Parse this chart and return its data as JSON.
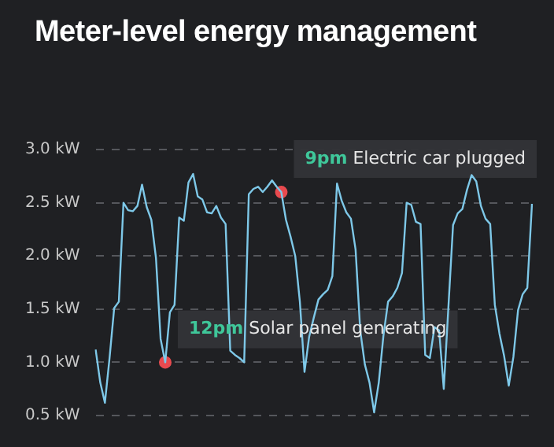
{
  "chart_data": {
    "type": "line",
    "title": "Meter-level energy management",
    "categories": [
      null,
      null,
      null,
      null,
      null,
      null,
      null,
      null,
      null,
      null,
      null,
      null,
      null,
      null,
      null,
      null,
      null,
      null,
      null,
      null,
      null,
      null,
      null,
      null,
      null,
      null,
      null,
      null,
      null,
      null,
      null,
      null,
      null,
      null,
      null,
      null,
      null,
      null,
      null,
      null,
      null,
      null,
      null,
      null,
      null,
      null,
      null,
      null,
      null,
      null,
      null,
      null,
      null,
      null,
      null,
      null,
      null,
      null,
      null,
      null,
      null,
      null,
      null,
      null,
      null,
      null,
      null,
      null,
      null,
      null,
      null,
      null,
      null,
      null,
      null,
      null,
      null,
      null,
      null,
      null,
      null,
      null,
      null,
      null,
      null,
      null,
      null,
      null,
      null,
      null,
      null,
      null,
      null,
      null,
      null
    ],
    "series": [
      {
        "color": "#7ec8e8",
        "values": [
          1.12,
          0.81,
          0.62,
          1.04,
          1.51,
          1.57,
          2.5,
          2.43,
          2.42,
          2.47,
          2.67,
          2.46,
          2.34,
          1.98,
          1.22,
          1.0,
          1.47,
          1.54,
          2.36,
          2.33,
          2.69,
          2.77,
          2.56,
          2.53,
          2.41,
          2.4,
          2.47,
          2.36,
          2.3,
          1.11,
          1.07,
          1.04,
          1.0,
          2.58,
          2.63,
          2.65,
          2.6,
          2.65,
          2.71,
          2.65,
          2.6,
          2.34,
          2.18,
          2.0,
          1.57,
          0.91,
          1.24,
          1.42,
          1.59,
          1.64,
          1.68,
          1.81,
          2.68,
          2.52,
          2.41,
          2.35,
          2.06,
          1.3,
          0.98,
          0.81,
          0.53,
          0.81,
          1.25,
          1.57,
          1.62,
          1.7,
          1.84,
          2.5,
          2.48,
          2.32,
          2.3,
          1.07,
          1.04,
          1.33,
          1.3,
          0.75,
          1.52,
          2.29,
          2.4,
          2.44,
          2.62,
          2.76,
          2.7,
          2.47,
          2.35,
          2.3,
          1.54,
          1.27,
          1.06,
          0.78,
          1.05,
          1.49,
          1.64,
          1.7,
          2.49
        ]
      },
      {
        "type": "scatter",
        "color": "#e84a4f",
        "values": [
          null,
          null,
          null,
          null,
          null,
          null,
          null,
          null,
          null,
          null,
          null,
          null,
          null,
          null,
          null,
          1.0,
          null,
          null,
          null,
          null,
          null,
          null,
          null,
          null,
          null,
          null,
          null,
          null,
          null,
          null,
          null,
          null,
          null,
          null,
          null,
          null,
          null,
          null,
          null,
          null,
          2.6,
          null,
          null,
          null,
          null,
          null,
          null,
          null,
          null,
          null,
          null,
          null,
          null,
          null,
          null,
          null,
          null,
          null,
          null,
          null,
          null,
          null,
          null,
          null,
          null,
          null,
          null,
          null,
          null,
          null,
          null,
          null,
          null,
          null,
          null,
          null,
          null,
          null,
          null,
          null,
          null,
          null,
          null,
          null,
          null,
          null,
          null,
          null,
          null,
          null,
          null,
          null,
          null,
          null,
          null
        ]
      }
    ],
    "annotations": [
      "12pm Solar panel generating",
      "9pm Electric car plugged"
    ],
    "ylim": [
      0.5,
      3.0
    ],
    "yticks": [
      {
        "value": 0.5,
        "label": "0.5 kW"
      },
      {
        "value": 1.0,
        "label": "1.0 kW"
      },
      {
        "value": 1.5,
        "label": "1.5 kW"
      },
      {
        "value": 2.0,
        "label": "2.0 kW"
      },
      {
        "value": 2.5,
        "label": "2.5 kW"
      },
      {
        "value": 3.0,
        "label": "3.0 kW"
      }
    ],
    "grid": "y",
    "legend": false,
    "tick_labels": "y",
    "line_style": "solid"
  }
}
